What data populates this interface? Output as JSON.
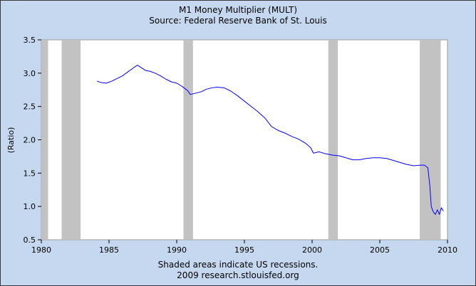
{
  "chart_data": {
    "type": "line",
    "title": "M1 Money Multiplier (MULT)",
    "subtitle": "Source: Federal Reserve Bank of St. Louis",
    "xlabel": "",
    "ylabel": "(Ratio)",
    "xlim": [
      1980,
      2010
    ],
    "ylim": [
      0.5,
      3.5
    ],
    "x_ticks": [
      1980,
      1985,
      1990,
      1995,
      2000,
      2005,
      2010
    ],
    "y_ticks": [
      "0.5",
      "1.0",
      "1.5",
      "2.0",
      "2.5",
      "3.0",
      "3.5"
    ],
    "grid": false,
    "legend": "none",
    "footnote": "Shaded areas indicate US recessions.",
    "credit": "2009 research.stlouisfed.org",
    "recessions": [
      [
        1980.0,
        1980.5
      ],
      [
        1981.5,
        1982.9
      ],
      [
        1990.5,
        1991.2
      ],
      [
        2001.2,
        2001.9
      ],
      [
        2007.95,
        2009.5
      ]
    ],
    "series": [
      {
        "x": [
          1984.1,
          1984.4,
          1984.8,
          1985.2,
          1985.6,
          1986.0,
          1986.4,
          1986.8,
          1987.1,
          1987.4,
          1987.7,
          1988.0,
          1988.4,
          1988.8,
          1989.2,
          1989.6,
          1990.0,
          1990.4,
          1990.8,
          1991.0,
          1991.4,
          1991.8,
          1992.2,
          1992.6,
          1993.0,
          1993.5,
          1994.0,
          1994.5,
          1995.0,
          1995.5,
          1996.0,
          1996.5,
          1997.0,
          1997.5,
          1998.0,
          1998.5,
          1999.0,
          1999.5,
          1999.9,
          2000.1,
          2000.5,
          2001.0,
          2001.5,
          2002.0,
          2002.5,
          2003.0,
          2003.5,
          2004.0,
          2004.5,
          2005.0,
          2005.5,
          2006.0,
          2006.5,
          2007.0,
          2007.5,
          2008.0,
          2008.3,
          2008.55,
          2008.7,
          2008.8,
          2008.95,
          2009.1,
          2009.25,
          2009.4,
          2009.55,
          2009.7
        ],
        "values": [
          2.88,
          2.86,
          2.85,
          2.88,
          2.92,
          2.96,
          3.02,
          3.08,
          3.12,
          3.08,
          3.04,
          3.03,
          3.0,
          2.96,
          2.91,
          2.87,
          2.85,
          2.8,
          2.74,
          2.68,
          2.7,
          2.72,
          2.76,
          2.78,
          2.79,
          2.78,
          2.73,
          2.66,
          2.58,
          2.5,
          2.42,
          2.33,
          2.2,
          2.14,
          2.1,
          2.05,
          2.01,
          1.95,
          1.88,
          1.8,
          1.82,
          1.79,
          1.77,
          1.76,
          1.73,
          1.7,
          1.7,
          1.72,
          1.73,
          1.73,
          1.72,
          1.69,
          1.66,
          1.63,
          1.61,
          1.62,
          1.62,
          1.58,
          1.3,
          1.0,
          0.92,
          0.88,
          0.95,
          0.88,
          0.98,
          0.93
        ]
      }
    ]
  },
  "colors": {
    "background": "#c5d8f0",
    "plot_background": "#ffffff",
    "recession_shade": "#c2c2c2",
    "series_line": "#0000ff"
  }
}
